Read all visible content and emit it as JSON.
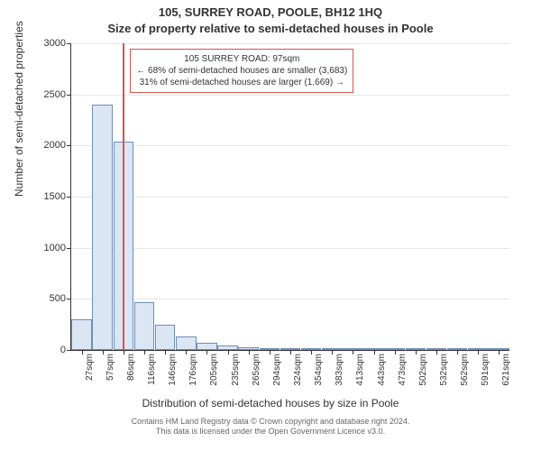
{
  "title_line1": "105, SURREY ROAD, POOLE, BH12 1HQ",
  "title_line2": "Size of property relative to semi-detached houses in Poole",
  "ylabel": "Number of semi-detached properties",
  "xlabel": "Distribution of semi-detached houses by size in Poole",
  "footer_line1": "Contains HM Land Registry data © Crown copyright and database right 2024.",
  "footer_line2": "This data is licensed under the Open Government Licence v3.0.",
  "chart": {
    "type": "histogram",
    "ylim": [
      0,
      3000
    ],
    "yticks": [
      0,
      500,
      1000,
      1500,
      2000,
      2500,
      3000
    ],
    "xtick_labels": [
      "27sqm",
      "57sqm",
      "86sqm",
      "116sqm",
      "146sqm",
      "176sqm",
      "205sqm",
      "235sqm",
      "265sqm",
      "294sqm",
      "324sqm",
      "354sqm",
      "383sqm",
      "413sqm",
      "443sqm",
      "473sqm",
      "502sqm",
      "532sqm",
      "562sqm",
      "591sqm",
      "621sqm"
    ],
    "bar_fill": "#dbe6f5",
    "bar_stroke": "#6f8db8",
    "grid_color": "#e6e6e6",
    "axis_color": "#333333",
    "bars": [
      300,
      2400,
      2040,
      470,
      250,
      130,
      70,
      45,
      30,
      20,
      15,
      10,
      8,
      6,
      5,
      5,
      4,
      4,
      3,
      3,
      2
    ],
    "reference_line": {
      "value_sqm": 97,
      "x_min_sqm": 27,
      "x_max_sqm": 621,
      "color": "#d9534f"
    },
    "annotation": {
      "line1": "105 SURREY ROAD: 97sqm",
      "line2": "← 68% of semi-detached houses are smaller (3,683)",
      "line3": "31% of semi-detached houses are larger (1,669) →",
      "border_color": "#d9534f"
    }
  }
}
